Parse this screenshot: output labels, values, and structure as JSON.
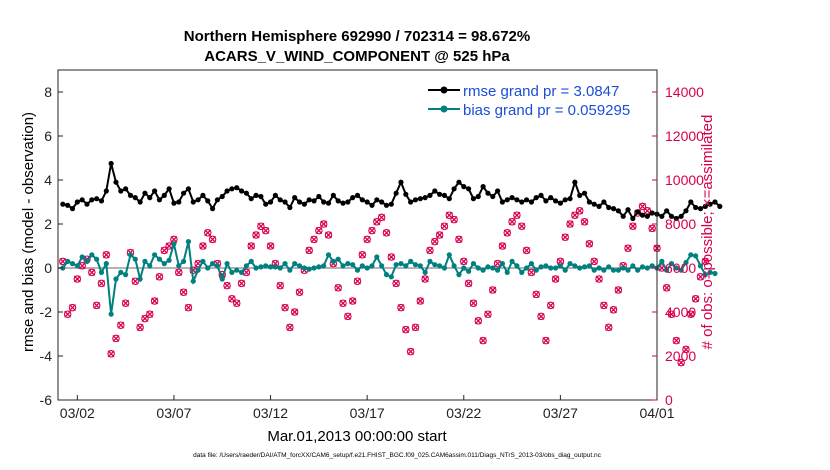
{
  "chart_data": {
    "type": "line",
    "title_line1": "Northern Hemisphere 692990 / 702314 = 98.672%",
    "title_line2": "ACARS_V_WIND_COMPONENT @ 525 hPa",
    "ylabel_left": "rmse and bias (model - observation)",
    "ylabel_right": "# of obs: o=possible; ×=assimilated",
    "xlabel": "Mar.01,2013 00:00:00 start",
    "footer": "data file: /Users/raeder/DAI/ATM_forcXX/CAM6_setup/f.e21.FHIST_BGC.f09_025.CAM6assim.011/Diags_NTrS_2013-03/obs_diag_output.nc",
    "x_range_days": [
      1,
      32
    ],
    "ylim_left": [
      -6,
      9
    ],
    "ylim_right": [
      0,
      15000
    ],
    "yticks_left": [
      "8",
      "6",
      "4",
      "2",
      "0",
      "-2",
      "-4",
      "-6"
    ],
    "yticks_right": [
      "14000",
      "12000",
      "10000",
      "8000",
      "6000",
      "4000",
      "2000",
      "0"
    ],
    "xticks": [
      "03/02",
      "03/07",
      "03/12",
      "03/17",
      "03/22",
      "03/27",
      "04/01"
    ],
    "grid": false,
    "legend_position": "top-right",
    "series": [
      {
        "name": "rmse grand pr = 3.0847",
        "color": "#000000",
        "marker": "filled-circle",
        "values": [
          2.9,
          2.85,
          2.7,
          3.0,
          3.1,
          2.9,
          3.1,
          3.15,
          3.05,
          3.5,
          4.75,
          3.9,
          3.5,
          3.6,
          3.3,
          3.2,
          3.0,
          3.4,
          3.2,
          3.5,
          3.1,
          3.3,
          3.6,
          2.95,
          3.0,
          3.4,
          3.6,
          3.0,
          3.1,
          3.3,
          3.05,
          2.7,
          3.1,
          3.25,
          3.5,
          3.6,
          3.65,
          3.5,
          3.4,
          3.15,
          3.3,
          3.25,
          2.9,
          3.0,
          3.3,
          3.1,
          3.0,
          2.75,
          3.2,
          3.0,
          2.9,
          3.1,
          3.05,
          3.25,
          3.0,
          2.95,
          3.3,
          3.05,
          2.95,
          3.0,
          3.2,
          3.3,
          3.1,
          3.0,
          2.85,
          3.1,
          3.0,
          2.85,
          2.9,
          3.4,
          3.9,
          3.35,
          3.0,
          3.1,
          3.15,
          3.2,
          3.3,
          3.5,
          3.35,
          3.3,
          3.15,
          3.6,
          3.9,
          3.7,
          3.6,
          3.15,
          3.25,
          3.7,
          3.4,
          3.25,
          3.5,
          3.0,
          3.1,
          3.2,
          3.1,
          3.0,
          3.1,
          3.0,
          3.2,
          3.3,
          3.05,
          3.2,
          3.05,
          2.95,
          3.1,
          3.15,
          3.9,
          3.3,
          3.4,
          3.0,
          2.9,
          2.8,
          3.0,
          2.75,
          2.7,
          2.6,
          2.35,
          2.65,
          2.25,
          2.55,
          2.4,
          2.35,
          2.5,
          2.45,
          2.35,
          2.6,
          2.35,
          2.25,
          2.35,
          2.6,
          3.0,
          2.75,
          2.7,
          2.8,
          2.9,
          3.0,
          2.8
        ]
      },
      {
        "name": "bias grand pr = 0.059295",
        "color": "#008080",
        "marker": "filled-circle",
        "values": [
          0.0,
          0.3,
          0.2,
          0.1,
          0.5,
          0.3,
          0.6,
          0.4,
          -0.2,
          0.2,
          -2.1,
          -0.5,
          -0.2,
          -0.3,
          0.6,
          0.4,
          -0.5,
          0.3,
          0.1,
          0.6,
          0.4,
          0.2,
          0.35,
          1.1,
          0.1,
          0.3,
          1.2,
          -0.6,
          -0.1,
          0.3,
          0.0,
          0.2,
          0.1,
          -0.5,
          0.2,
          -0.2,
          -0.1,
          -0.2,
          0.1,
          0.3,
          0.0,
          0.05,
          0.1,
          0.05,
          0.05,
          0.0,
          0.2,
          -0.1,
          0.2,
          0.1,
          0.0,
          -0.05,
          0.0,
          0.05,
          0.1,
          0.6,
          0.3,
          0.4,
          0.1,
          0.2,
          0.15,
          -0.1,
          0.1,
          0.0,
          0.1,
          0.5,
          0.1,
          -0.3,
          -0.4,
          0.15,
          0.2,
          0.1,
          0.3,
          0.15,
          0.1,
          -0.2,
          0.3,
          0.15,
          0.1,
          0.0,
          0.6,
          0.1,
          -0.3,
          0.0,
          -0.15,
          0.2,
          0.0,
          -0.1,
          0.05,
          0.0,
          -0.1,
          0.2,
          -0.2,
          0.3,
          0.1,
          -0.2,
          0.0,
          0.2,
          -0.1,
          0.05,
          0.1,
          0.0,
          0.0,
          0.1,
          -0.1,
          0.2,
          0.1,
          0.0,
          0.05,
          0.1,
          -0.1,
          0.0,
          -0.1,
          0.05,
          -0.1,
          -0.1,
          0.0,
          -0.1,
          0.1,
          -0.1,
          0.05,
          0.0,
          0.1,
          0.0,
          0.3,
          -0.1,
          0.2,
          0.0,
          -0.1,
          0.25,
          0.6,
          0.55,
          0.1,
          -0.3,
          -0.2,
          -0.25
        ]
      }
    ],
    "obs_counts": {
      "color": "#d6004f",
      "possible_marker": "o",
      "assimilated_marker": "x",
      "values": [
        6300,
        3900,
        4200,
        5500,
        6100,
        6400,
        5800,
        4300,
        5300,
        6600,
        2100,
        2800,
        3400,
        4400,
        6700,
        5400,
        3300,
        3700,
        3900,
        4500,
        5600,
        6800,
        7000,
        7300,
        5800,
        4900,
        4200,
        5900,
        6200,
        7000,
        7600,
        7300,
        6200,
        5700,
        5200,
        4600,
        4400,
        5300,
        5800,
        7000,
        7500,
        7900,
        7700,
        7000,
        6200,
        5200,
        4200,
        3300,
        4000,
        4900,
        5900,
        6800,
        7300,
        7700,
        8000,
        7500,
        6200,
        5100,
        4400,
        3800,
        4500,
        5400,
        6600,
        7300,
        7700,
        8100,
        8300,
        7600,
        6500,
        5300,
        4200,
        3200,
        2200,
        3300,
        4500,
        5500,
        6800,
        7200,
        7500,
        7900,
        8400,
        8200,
        7300,
        6300,
        5300,
        4400,
        3600,
        2700,
        3900,
        5000,
        6200,
        7000,
        7600,
        8100,
        8400,
        7900,
        6800,
        5800,
        4800,
        3800,
        2700,
        4300,
        5500,
        6300,
        7400,
        8000,
        8400,
        8600,
        8100,
        7100,
        6300,
        5500,
        4300,
        3300,
        4100,
        5000,
        6100,
        6900,
        7900,
        8500,
        8800,
        8600,
        7800,
        6900,
        6000,
        5100,
        3900,
        2700,
        1700,
        2300,
        3900,
        4600,
        5600,
        6300
      ]
    }
  }
}
